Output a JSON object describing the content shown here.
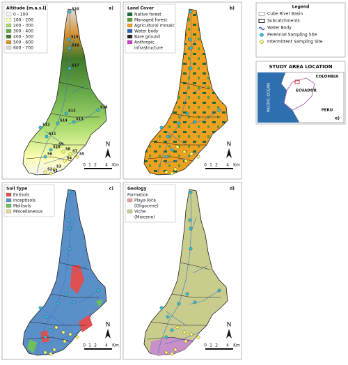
{
  "panel_a": {
    "letter": "a)",
    "legend_title": "Altitude [m.a.s.l]",
    "classes": [
      {
        "label": [
          "0 - 100"
        ],
        "color": "#f4f4f4"
      },
      {
        "label": [
          "100 - 200"
        ],
        "color": "#ffffb2"
      },
      {
        "label": [
          "200 - 300"
        ],
        "color": "#a6d96a"
      },
      {
        "label": [
          "300 - 400"
        ],
        "color": "#66a84a"
      },
      {
        "label": [
          "400 - 500"
        ],
        "color": "#3f7a2a"
      },
      {
        "label": [
          "500 - 600"
        ],
        "color": "#d8922e"
      },
      {
        "label": [
          "600 - 700"
        ],
        "color": "#dcdcdc"
      }
    ],
    "sites": [
      "S20",
      "S19",
      "S18",
      "S17",
      "S16",
      "S15",
      "S14",
      "S13",
      "S12",
      "S11",
      "S10",
      "S9",
      "S8",
      "S7",
      "S6",
      "S5",
      "S4",
      "S3",
      "S2",
      "S1"
    ]
  },
  "panel_b": {
    "letter": "b)",
    "legend_title": "Land Cover",
    "classes": [
      {
        "label": [
          "Native forest"
        ],
        "color": "#1e6b3a"
      },
      {
        "label": [
          "Managed forest"
        ],
        "color": "#5a9e2f"
      },
      {
        "label": [
          "Agricultural mosaic"
        ],
        "color": "#f0a020"
      },
      {
        "label": [
          "Water body"
        ],
        "color": "#2b5fb0"
      },
      {
        "label": [
          "Bare ground"
        ],
        "color": "#222222"
      },
      {
        "label": [
          "Anthropic",
          "infrastructure"
        ],
        "color": "#d040d0"
      }
    ]
  },
  "panel_c": {
    "letter": "c)",
    "legend_title": "Soil Type",
    "classes": [
      {
        "label": [
          "Entisols"
        ],
        "color": "#e05050"
      },
      {
        "label": [
          "Inceptisols"
        ],
        "color": "#5b8fc8"
      },
      {
        "label": [
          "Mollisols"
        ],
        "color": "#6dbf5a"
      },
      {
        "label": [
          "Miscellaneous"
        ],
        "color": "#e8d890"
      }
    ]
  },
  "panel_d": {
    "letter": "d)",
    "legend_title": "Geology",
    "subtitle": "Formation",
    "classes": [
      {
        "label": [
          "Playa Rica",
          "(Oligocene)"
        ],
        "color": "#e8a0a8"
      },
      {
        "label": [
          "Viche",
          "(Miocene)"
        ],
        "color": "#c8cc8c"
      }
    ]
  },
  "legend": {
    "title": "Legend",
    "items": [
      "Cube River Basin",
      "Subcatchments",
      "Water Body",
      "Perennial Sampling Site",
      "Intermittent Sampling Site"
    ]
  },
  "location": {
    "title": "STUDY AREA LOCATION",
    "letter": "e)",
    "colombia": "COLOMBIA",
    "ecuador": "ECUADOR",
    "peru": "PERU",
    "ocean": "PACIFIC OCEAN"
  },
  "north": "N",
  "scale": [
    "0",
    "1",
    "2",
    "4",
    "Km"
  ]
}
